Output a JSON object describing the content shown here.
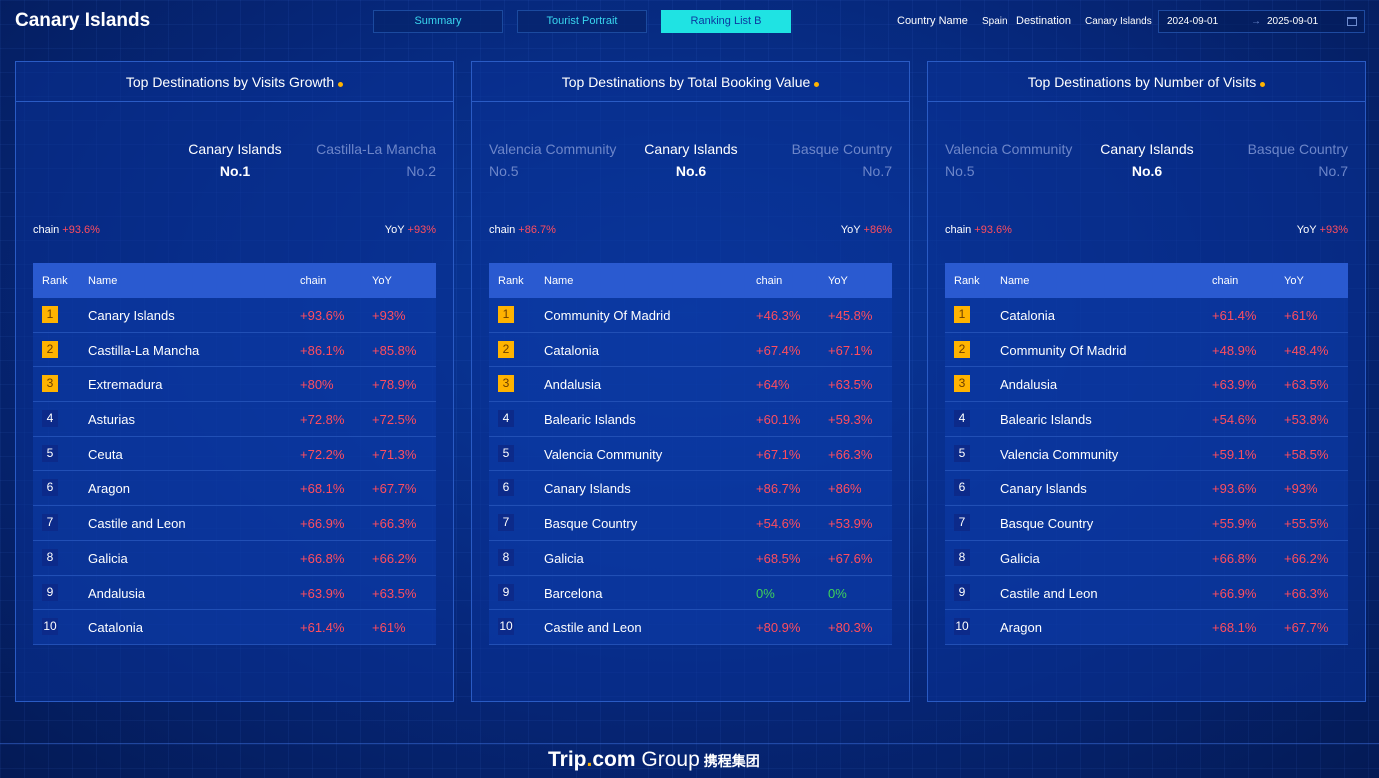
{
  "header": {
    "title": "Canary Islands",
    "tabs": [
      "Summary",
      "Tourist Portrait",
      "Ranking List B"
    ],
    "filters": {
      "country_label": "Country Name",
      "country_value": "Spain",
      "destination_label": "Destination",
      "destination_value": "Canary Islands",
      "date_start": "2024-09-01",
      "date_arrow": "→",
      "date_end": "2025-09-01"
    }
  },
  "table_headers": {
    "rank": "Rank",
    "name": "Name",
    "chain": "chain",
    "yoy": "YoY"
  },
  "metric_labels": {
    "chain": "chain",
    "yoy": "YoY"
  },
  "panels": [
    {
      "title": "Top Destinations by Visits Growth",
      "neighbors": [
        {
          "name": "",
          "no": ""
        },
        {
          "name": "Canary Islands",
          "no": "No.1"
        },
        {
          "name": "Castilla-La Mancha",
          "no": "No.2"
        }
      ],
      "chain": "+93.6%",
      "yoy": "+93%",
      "rows": [
        {
          "rank": "1",
          "name": "Canary Islands",
          "chain": "+93.6%",
          "yoy": "+93%"
        },
        {
          "rank": "2",
          "name": "Castilla-La Mancha",
          "chain": "+86.1%",
          "yoy": "+85.8%"
        },
        {
          "rank": "3",
          "name": "Extremadura",
          "chain": "+80%",
          "yoy": "+78.9%"
        },
        {
          "rank": "4",
          "name": "Asturias",
          "chain": "+72.8%",
          "yoy": "+72.5%"
        },
        {
          "rank": "5",
          "name": "Ceuta",
          "chain": "+72.2%",
          "yoy": "+71.3%"
        },
        {
          "rank": "6",
          "name": "Aragon",
          "chain": "+68.1%",
          "yoy": "+67.7%"
        },
        {
          "rank": "7",
          "name": "Castile and Leon",
          "chain": "+66.9%",
          "yoy": "+66.3%"
        },
        {
          "rank": "8",
          "name": "Galicia",
          "chain": "+66.8%",
          "yoy": "+66.2%"
        },
        {
          "rank": "9",
          "name": "Andalusia",
          "chain": "+63.9%",
          "yoy": "+63.5%"
        },
        {
          "rank": "10",
          "name": "Catalonia",
          "chain": "+61.4%",
          "yoy": "+61%"
        }
      ]
    },
    {
      "title": "Top Destinations by Total Booking Value",
      "neighbors": [
        {
          "name": "Valencia Community",
          "no": "No.5"
        },
        {
          "name": "Canary Islands",
          "no": "No.6"
        },
        {
          "name": "Basque Country",
          "no": "No.7"
        }
      ],
      "chain": "+86.7%",
      "yoy": "+86%",
      "rows": [
        {
          "rank": "1",
          "name": "Community Of Madrid",
          "chain": "+46.3%",
          "yoy": "+45.8%"
        },
        {
          "rank": "2",
          "name": "Catalonia",
          "chain": "+67.4%",
          "yoy": "+67.1%"
        },
        {
          "rank": "3",
          "name": "Andalusia",
          "chain": "+64%",
          "yoy": "+63.5%"
        },
        {
          "rank": "4",
          "name": "Balearic Islands",
          "chain": "+60.1%",
          "yoy": "+59.3%"
        },
        {
          "rank": "5",
          "name": "Valencia Community",
          "chain": "+67.1%",
          "yoy": "+66.3%"
        },
        {
          "rank": "6",
          "name": "Canary Islands",
          "chain": "+86.7%",
          "yoy": "+86%"
        },
        {
          "rank": "7",
          "name": "Basque Country",
          "chain": "+54.6%",
          "yoy": "+53.9%"
        },
        {
          "rank": "8",
          "name": "Galicia",
          "chain": "+68.5%",
          "yoy": "+67.6%"
        },
        {
          "rank": "9",
          "name": "Barcelona",
          "chain": "0%",
          "yoy": "0%"
        },
        {
          "rank": "10",
          "name": "Castile and Leon",
          "chain": "+80.9%",
          "yoy": "+80.3%"
        }
      ]
    },
    {
      "title": "Top Destinations by Number of Visits",
      "neighbors": [
        {
          "name": "Valencia Community",
          "no": "No.5"
        },
        {
          "name": "Canary Islands",
          "no": "No.6"
        },
        {
          "name": "Basque Country",
          "no": "No.7"
        }
      ],
      "chain": "+93.6%",
      "yoy": "+93%",
      "rows": [
        {
          "rank": "1",
          "name": "Catalonia",
          "chain": "+61.4%",
          "yoy": "+61%"
        },
        {
          "rank": "2",
          "name": "Community Of Madrid",
          "chain": "+48.9%",
          "yoy": "+48.4%"
        },
        {
          "rank": "3",
          "name": "Andalusia",
          "chain": "+63.9%",
          "yoy": "+63.5%"
        },
        {
          "rank": "4",
          "name": "Balearic Islands",
          "chain": "+54.6%",
          "yoy": "+53.8%"
        },
        {
          "rank": "5",
          "name": "Valencia Community",
          "chain": "+59.1%",
          "yoy": "+58.5%"
        },
        {
          "rank": "6",
          "name": "Canary Islands",
          "chain": "+93.6%",
          "yoy": "+93%"
        },
        {
          "rank": "7",
          "name": "Basque Country",
          "chain": "+55.9%",
          "yoy": "+55.5%"
        },
        {
          "rank": "8",
          "name": "Galicia",
          "chain": "+66.8%",
          "yoy": "+66.2%"
        },
        {
          "rank": "9",
          "name": "Castile and Leon",
          "chain": "+66.9%",
          "yoy": "+66.3%"
        },
        {
          "rank": "10",
          "name": "Aragon",
          "chain": "+68.1%",
          "yoy": "+67.7%"
        }
      ]
    }
  ],
  "footer": {
    "logo_trip": "Trip",
    "logo_dot": ".",
    "logo_com": "com",
    "logo_group": " Group",
    "logo_cn": "携程集团"
  },
  "colors": {
    "accent": "#1fe3e3",
    "gold": "#ffb300",
    "positive": "#ff4d5e",
    "zero": "#3fd35a",
    "header_row": "#2a5ad0"
  }
}
